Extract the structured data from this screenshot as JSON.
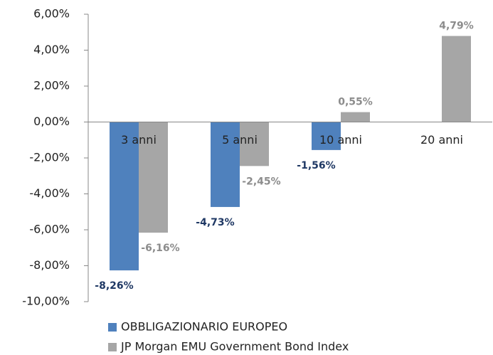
{
  "chart_data": {
    "type": "bar",
    "categories": [
      "3 anni",
      "5 anni",
      "10 anni",
      "20 anni"
    ],
    "series": [
      {
        "name": "OBBLIGAZIONARIO EUROPEO",
        "color": "#4f81bd",
        "label_color": "#1f3864",
        "values": [
          -8.26,
          -4.73,
          -1.56,
          null
        ],
        "value_labels": [
          "-8,26%",
          "-4,73%",
          "-1,56%",
          null
        ]
      },
      {
        "name": "JP Morgan EMU Government Bond Index",
        "color": "#a6a6a6",
        "label_color": "#8c8c8c",
        "values": [
          -6.16,
          -2.45,
          0.55,
          4.79
        ],
        "value_labels": [
          "-6,16%",
          "-2,45%",
          "0,55%",
          "4,79%"
        ]
      }
    ],
    "ylim": [
      -10,
      6
    ],
    "yticks": [
      {
        "value": -10,
        "label": "-10,00%"
      },
      {
        "value": -8,
        "label": "-8,00%"
      },
      {
        "value": -6,
        "label": "-6,00%"
      },
      {
        "value": -4,
        "label": "-4,00%"
      },
      {
        "value": -2,
        "label": "-2,00%"
      },
      {
        "value": 0,
        "label": "0,00%"
      },
      {
        "value": 2,
        "label": "2,00%"
      },
      {
        "value": 4,
        "label": "4,00%"
      },
      {
        "value": 6,
        "label": "6,00%"
      }
    ],
    "grid": false,
    "legend": "bottom"
  }
}
